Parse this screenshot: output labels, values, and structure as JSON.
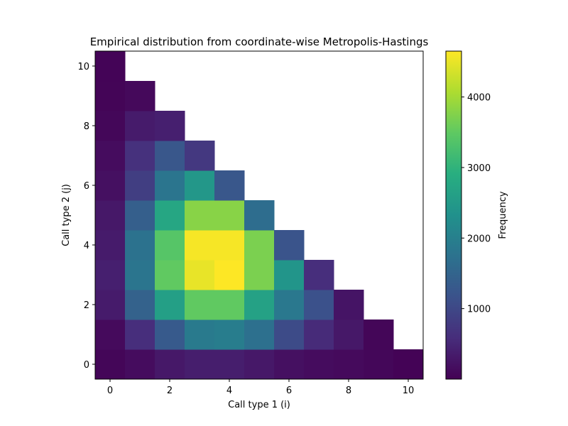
{
  "chart_data": {
    "type": "heatmap",
    "title": "Empirical distribution from coordinate-wise Metropolis-Hastings",
    "xlabel": "Call type 1 (i)",
    "ylabel": "Call type 2 (j)",
    "colorbar_label": "Frequency",
    "colormap": "viridis",
    "x_ticks": [
      0,
      2,
      4,
      6,
      8,
      10
    ],
    "y_ticks": [
      0,
      2,
      4,
      6,
      8,
      10
    ],
    "colorbar_ticks": [
      1000,
      2000,
      3000,
      4000
    ],
    "vmin": 0,
    "vmax": 4650,
    "xlim": [
      -0.5,
      10.5
    ],
    "ylim": [
      -0.5,
      10.5
    ],
    "grid": false,
    "legend_position": "colorbar right",
    "values_by_row_j": [
      [
        60,
        150,
        300,
        380,
        380,
        300,
        200,
        150,
        120,
        80,
        30
      ],
      [
        120,
        600,
        1300,
        1900,
        1950,
        1700,
        1050,
        550,
        300,
        60
      ],
      [
        350,
        1450,
        2600,
        3500,
        3500,
        2650,
        1850,
        1150,
        250
      ],
      [
        400,
        1800,
        3500,
        4500,
        4650,
        3700,
        2400,
        600
      ],
      [
        350,
        1750,
        3400,
        4600,
        4600,
        3700,
        1200
      ],
      [
        300,
        1400,
        2750,
        3800,
        3800,
        1650
      ],
      [
        200,
        850,
        1800,
        2450,
        1250
      ],
      [
        150,
        650,
        1250,
        750
      ],
      [
        80,
        350,
        400
      ],
      [
        50,
        100
      ],
      [
        40
      ]
    ]
  }
}
